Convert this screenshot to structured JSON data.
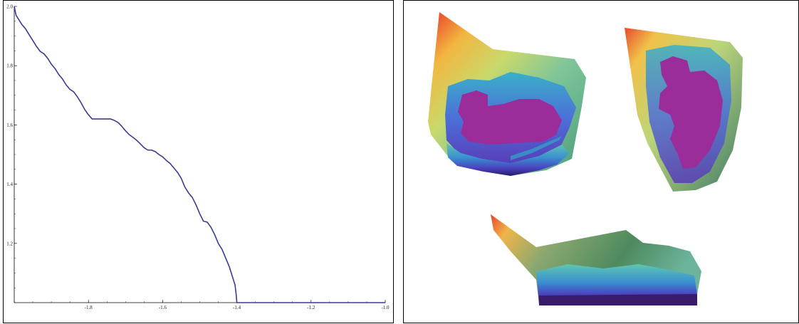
{
  "chart_data": [
    {
      "type": "line",
      "xlim": [
        -2.0,
        -1.0
      ],
      "ylim": [
        1.0,
        2.0
      ],
      "x_ticks": [
        -1.8,
        -1.6,
        -1.4,
        -1.2,
        -1.0
      ],
      "x_tick_labels": [
        "-1.8",
        "-1.6",
        "-1.4",
        "-1.2",
        "-1.0"
      ],
      "y_ticks": [
        1.2,
        1.4,
        1.6,
        1.8,
        2.0
      ],
      "y_tick_labels": [
        "1.2",
        "1.4",
        "1.6",
        "1.8",
        "2.0"
      ],
      "grid": false,
      "series": [
        {
          "color": "#3b3b8f",
          "x": [
            -2.0,
            -1.995,
            -1.99,
            -1.98,
            -1.97,
            -1.96,
            -1.95,
            -1.94,
            -1.93,
            -1.92,
            -1.91,
            -1.9,
            -1.89,
            -1.88,
            -1.87,
            -1.86,
            -1.85,
            -1.84,
            -1.83,
            -1.82,
            -1.81,
            -1.8,
            -1.79,
            -1.78,
            -1.77,
            -1.76,
            -1.75,
            -1.74,
            -1.73,
            -1.72,
            -1.71,
            -1.7,
            -1.69,
            -1.68,
            -1.67,
            -1.66,
            -1.65,
            -1.64,
            -1.63,
            -1.62,
            -1.61,
            -1.6,
            -1.59,
            -1.58,
            -1.57,
            -1.56,
            -1.55,
            -1.54,
            -1.53,
            -1.52,
            -1.51,
            -1.5,
            -1.49,
            -1.48,
            -1.47,
            -1.46,
            -1.45,
            -1.44,
            -1.43,
            -1.42,
            -1.415,
            -1.41,
            -1.405,
            -1.402,
            -1.4,
            -1.39,
            -1.3,
            -1.2,
            -1.1,
            -1.0
          ],
          "y": [
            2.0,
            1.97,
            1.96,
            1.94,
            1.925,
            1.905,
            1.885,
            1.865,
            1.848,
            1.84,
            1.825,
            1.805,
            1.79,
            1.77,
            1.755,
            1.735,
            1.72,
            1.712,
            1.695,
            1.675,
            1.652,
            1.634,
            1.62,
            1.62,
            1.62,
            1.62,
            1.62,
            1.62,
            1.615,
            1.608,
            1.595,
            1.58,
            1.567,
            1.558,
            1.548,
            1.536,
            1.523,
            1.515,
            1.515,
            1.51,
            1.5,
            1.492,
            1.48,
            1.47,
            1.455,
            1.44,
            1.42,
            1.39,
            1.37,
            1.355,
            1.33,
            1.3,
            1.275,
            1.272,
            1.255,
            1.23,
            1.2,
            1.18,
            1.15,
            1.12,
            1.1,
            1.08,
            1.06,
            1.03,
            1.0,
            1.0,
            1.0,
            1.0,
            1.0,
            1.0
          ]
        }
      ]
    }
  ]
}
